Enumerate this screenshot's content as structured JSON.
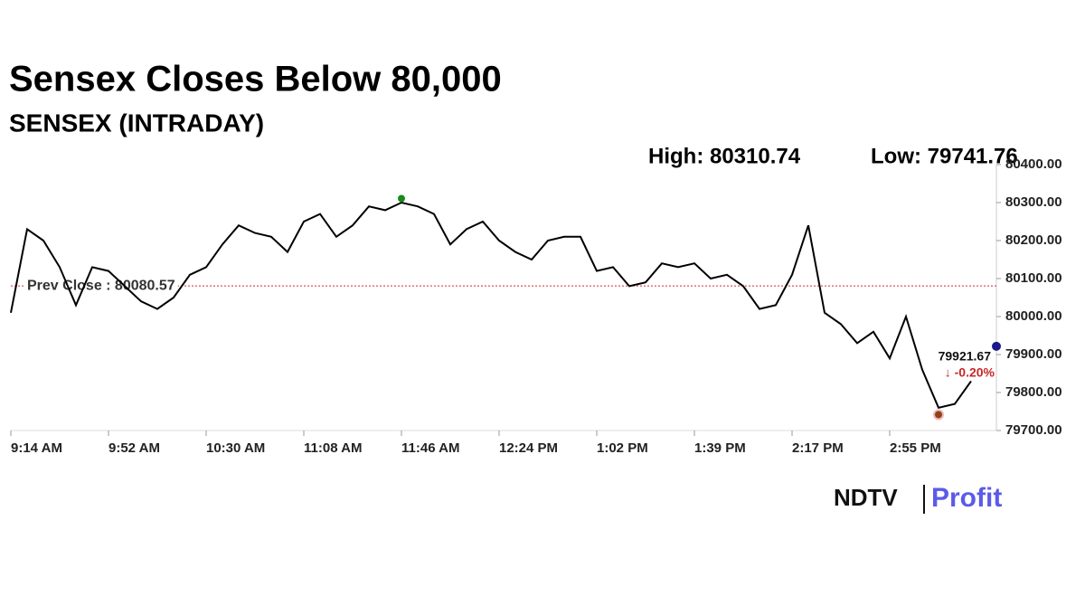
{
  "chart_data": {
    "type": "line",
    "title": "Sensex Closes Below 80,000",
    "subtitle": "SENSEX (INTRADAY)",
    "high": {
      "value": 80310.74,
      "label": "High: 80310.74"
    },
    "low": {
      "value": 79741.76,
      "label": "Low: 79741.76"
    },
    "reference": {
      "value": 80080.57,
      "label": "Prev Close : 80080.57",
      "color": "#d62728"
    },
    "last": {
      "value": 79921.67,
      "label": "79921.67",
      "change": "↓ -0.20%"
    },
    "categories": [
      "9:14 AM",
      null,
      null,
      null,
      null,
      null,
      "9:52 AM",
      null,
      null,
      null,
      null,
      null,
      "10:30 AM",
      null,
      null,
      null,
      null,
      null,
      "11:08 AM",
      null,
      null,
      null,
      null,
      null,
      "11:46 AM",
      null,
      null,
      null,
      null,
      null,
      "12:24 PM",
      null,
      null,
      null,
      null,
      null,
      "1:02 PM",
      null,
      null,
      null,
      null,
      null,
      "1:39 PM",
      null,
      null,
      null,
      null,
      null,
      "2:17 PM",
      null,
      null,
      null,
      null,
      null,
      "2:55 PM",
      null,
      null,
      null,
      null,
      null
    ],
    "series": [
      {
        "name": "SENSEX",
        "color": "#000000",
        "values": [
          80010,
          80230,
          80200,
          80130,
          80030,
          80130,
          80120,
          80080,
          80040,
          80020,
          80050,
          80110,
          80130,
          80190,
          80240,
          80220,
          80210,
          80170,
          80250,
          80270,
          80210,
          80240,
          80290,
          80280,
          80300,
          80290,
          80270,
          80190,
          80230,
          80250,
          80200,
          80170,
          80150,
          80200,
          80210,
          80210,
          80120,
          80130,
          80080,
          80090,
          80140,
          80130,
          80140,
          80100,
          80110,
          80080,
          80020,
          80030,
          80110,
          80240,
          80010,
          79980,
          79930,
          79960,
          79890,
          80000,
          79860,
          79760,
          79770,
          79830
        ]
      }
    ],
    "ylim": [
      79700,
      80400
    ],
    "yticks": [
      {
        "value": 79700,
        "label": "79700.00"
      },
      {
        "value": 79800,
        "label": "79800.00"
      },
      {
        "value": 79900,
        "label": "79900.00"
      },
      {
        "value": 80000,
        "label": "80000.00"
      },
      {
        "value": 80100,
        "label": "80100.00"
      },
      {
        "value": 80200,
        "label": "80200.00"
      },
      {
        "value": 80300,
        "label": "80300.00"
      },
      {
        "value": 80400,
        "label": "80400.00"
      }
    ],
    "grid": false
  },
  "logo": {
    "left": "NDTV",
    "right": "Profit"
  }
}
